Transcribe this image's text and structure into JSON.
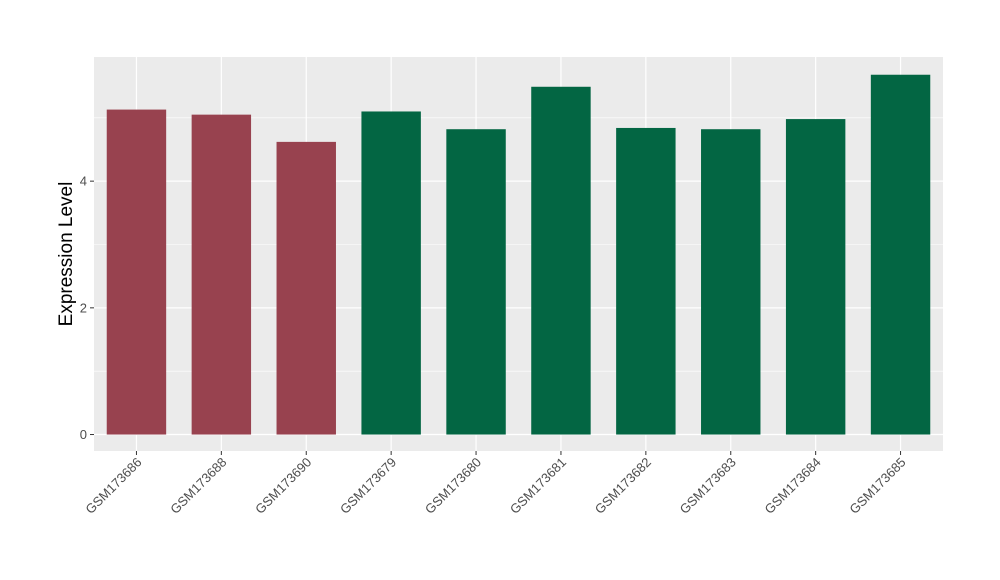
{
  "chart_data": {
    "type": "bar",
    "title": "",
    "xlabel": "",
    "ylabel": "Expression Level",
    "categories": [
      "GSM173686",
      "GSM173688",
      "GSM173690",
      "GSM173679",
      "GSM173680",
      "GSM173681",
      "GSM173682",
      "GSM173683",
      "GSM173684",
      "GSM173685"
    ],
    "values": [
      5.13,
      5.05,
      4.62,
      5.1,
      4.82,
      5.49,
      4.84,
      4.82,
      4.98,
      5.68
    ],
    "bar_colors": [
      "#98424F",
      "#98424F",
      "#98424F",
      "#036643",
      "#036643",
      "#036643",
      "#036643",
      "#036643",
      "#036643",
      "#036643"
    ],
    "ylim": [
      -0.26,
      5.96
    ],
    "yticks": [
      0,
      2,
      4
    ],
    "ytick_labels": [
      "0",
      "2",
      "4"
    ],
    "grid": true,
    "legend": "none",
    "panel_background": "#EBEBEB",
    "grid_color": "#FFFFFF"
  }
}
